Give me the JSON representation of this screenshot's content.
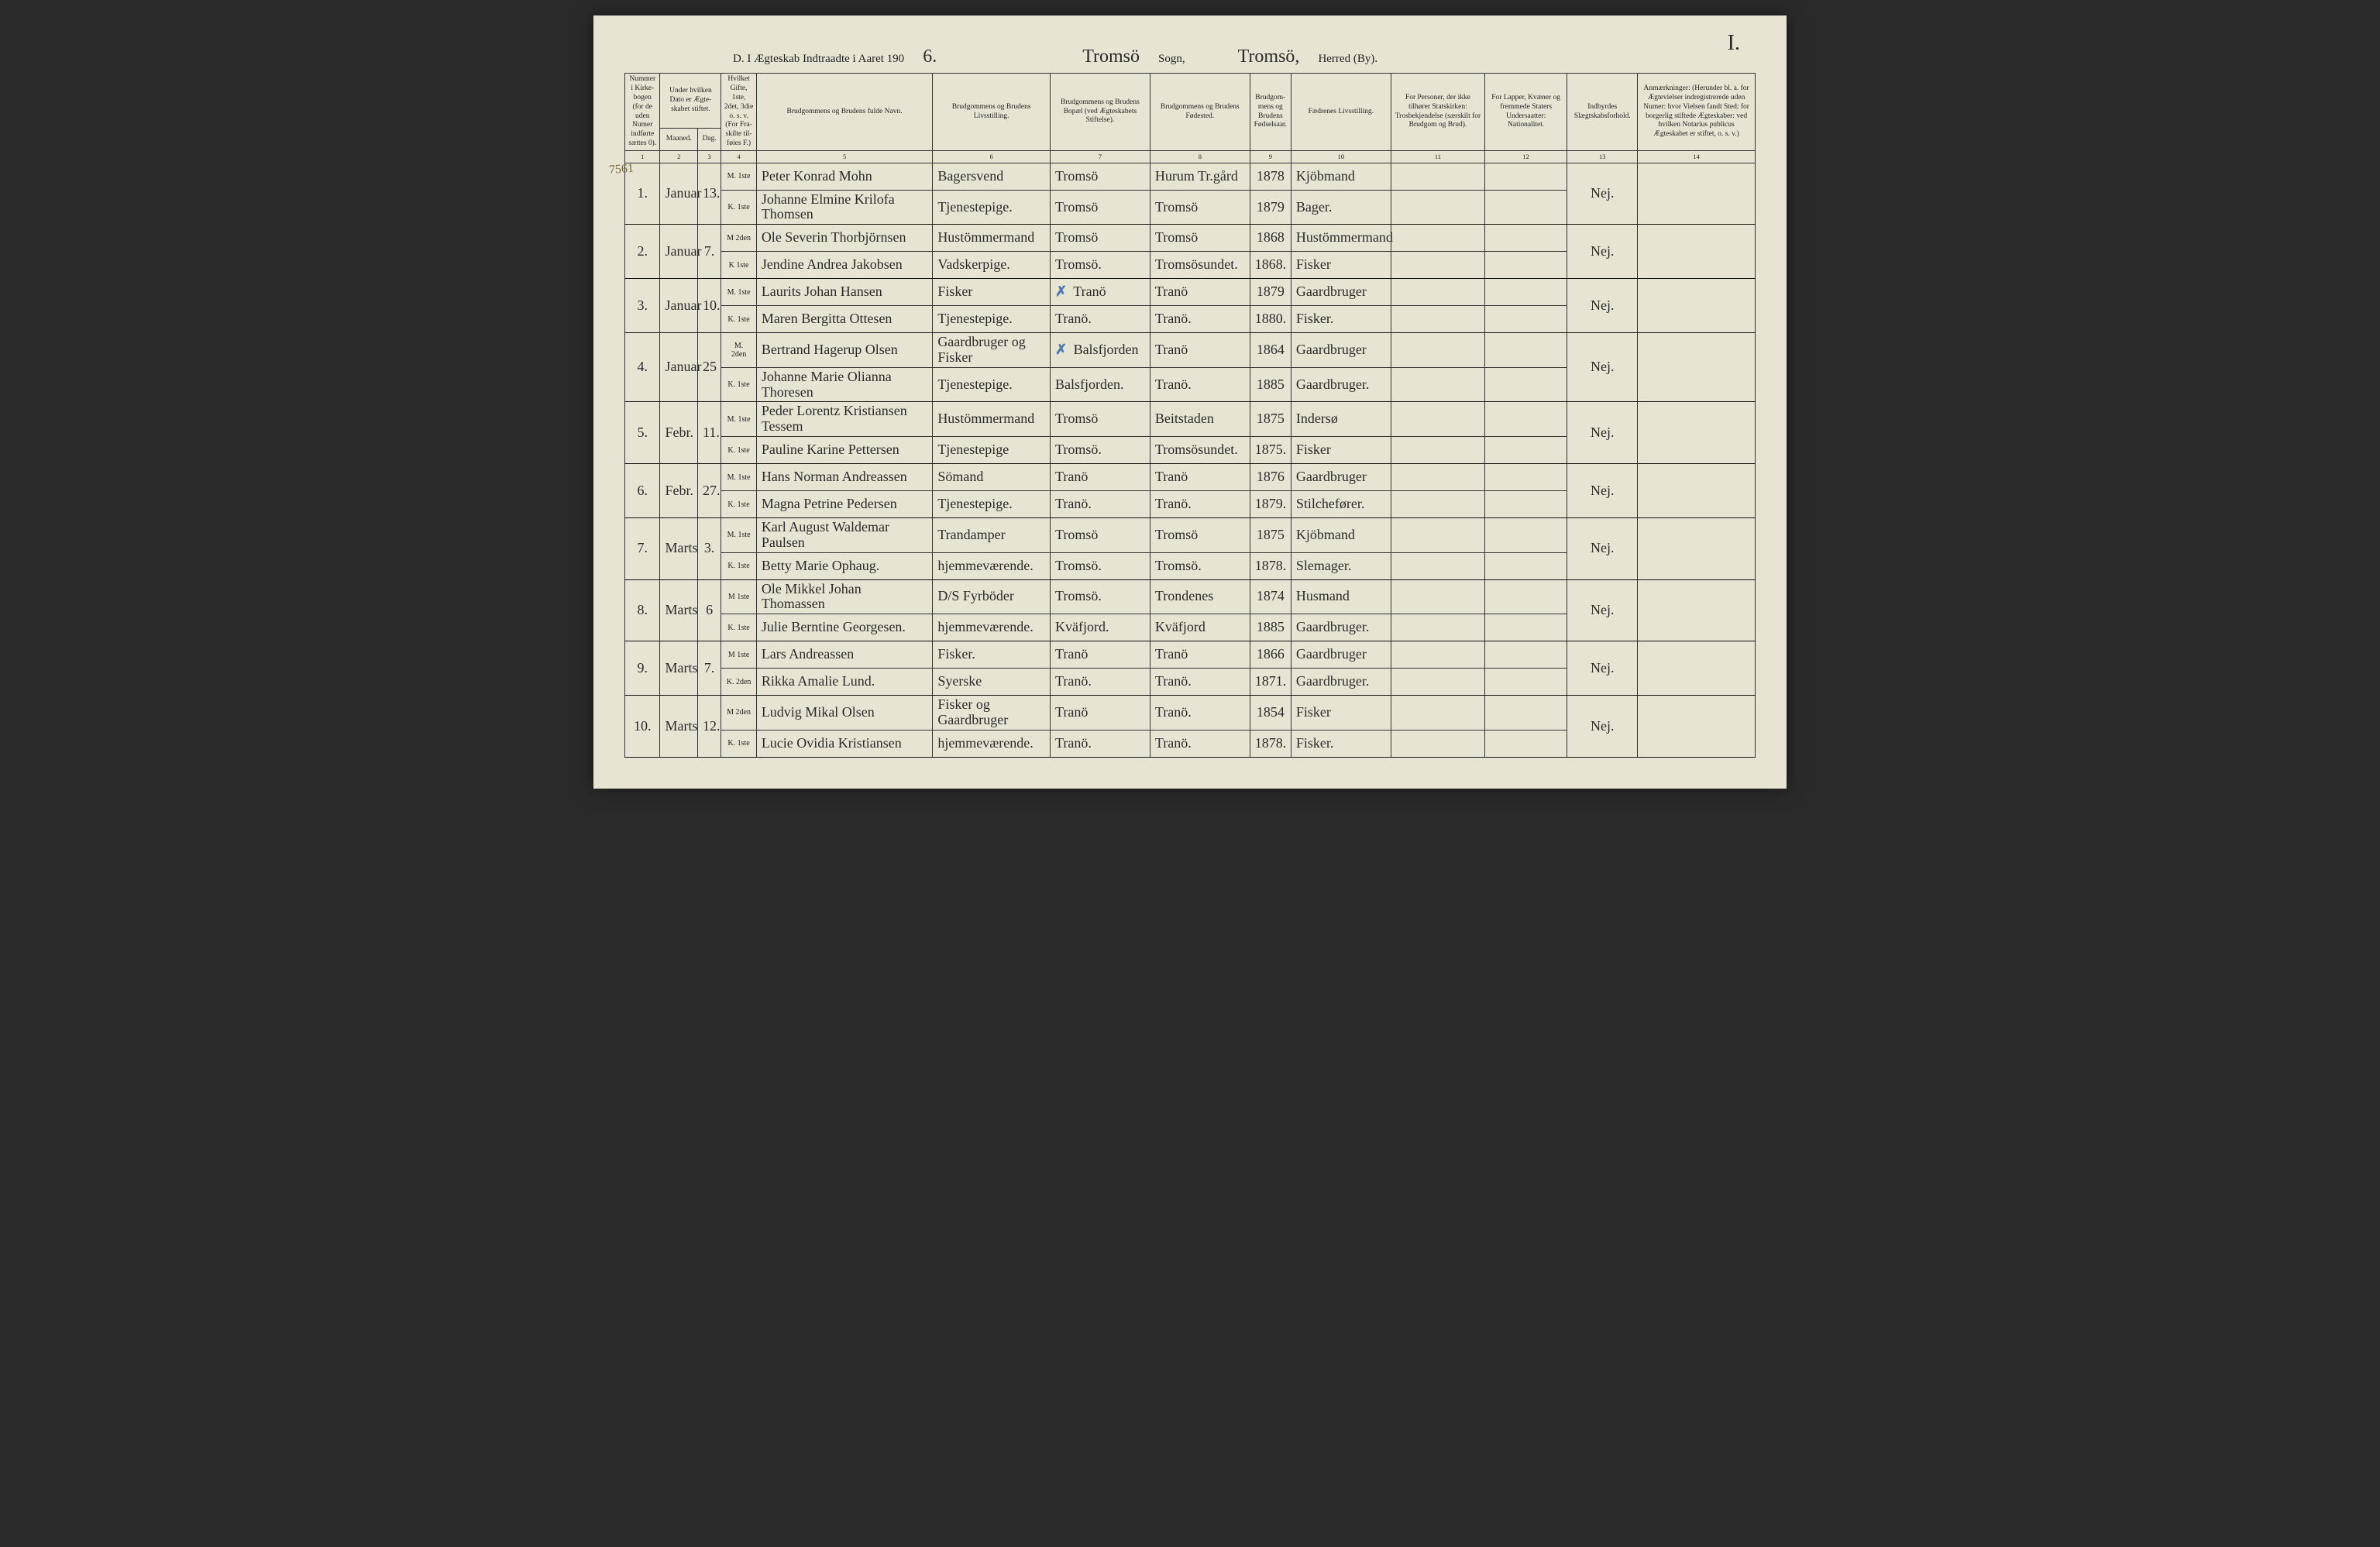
{
  "page_number": "I.",
  "margin_note": "7561",
  "heading": {
    "prefix": "D.  I Ægteskab Indtraadte i Aaret 190",
    "year_suffix": "6.",
    "sogn_label": "Sogn,",
    "herred_label": "Herred (By).",
    "sogn_value": "Tromsö",
    "herred_value": "Tromsö,"
  },
  "columns": [
    "Nummer i Kirke­bogen (for de uden Numer indførte sættes 0).",
    "Under hvilken Dato er Ægte­skabet stiftet.",
    "",
    "Hvilket Gifte, 1ste, 2det, 3die o. s. v. (For Fra­skilte til­føies F.)",
    "Brudgommens og Brudens fulde Navn.",
    "Brudgommens og Brudens Livsstilling.",
    "Brudgommens og Brudens Bopæl (ved Ægteskabets Stiftelse).",
    "Brudgommens og Brudens Fødested.",
    "Brudgom­mens og Brudens Fødselsaar.",
    "Fædrenes Livsstilling.",
    "For Personer, der ikke tilhører Statskirken: Trosbekjendelse (særskilt for Brudgom og Brud).",
    "For Lapper, Kvæner og fremmede Staters Undersaatter: Nationalitet.",
    "Indbyrdes Slægtskabsforhold.",
    "Anmærkninger: (Herunder bl. a. for Ægte­vielser indregistrerede uden Numer: hvor Vielsen fandt Sted; for borgerlig stiftede Ægteskaber: ved hvilken Notarius publicus Ægteskabet er stiftet, o. s. v.)"
  ],
  "subcols": {
    "c2a": "Maaned.",
    "c2b": "Dag."
  },
  "colnums": [
    "1",
    "2",
    "3",
    "4",
    "5",
    "6",
    "7",
    "8",
    "9",
    "10",
    "11",
    "12",
    "13",
    "14"
  ],
  "rows": [
    {
      "n": "1.",
      "month": "Januar",
      "day": "13.",
      "col13": "Nej.",
      "m": {
        "g": "M. 1ste",
        "name": "Peter Konrad Mohn",
        "stand": "Bagersvend",
        "bopel": "Tromsö",
        "fsted": "Hurum Tr.gård",
        "aar": "1878",
        "far": "Kjöbmand"
      },
      "k": {
        "g": "K. 1ste",
        "name": "Johanne Elmine Krilofa Thomsen",
        "stand": "Tjenestepige.",
        "bopel": "Tromsö",
        "fsted": "Tromsö",
        "aar": "1879",
        "far": "Bager."
      }
    },
    {
      "n": "2.",
      "month": "Januar",
      "day": "7.",
      "col13": "Nej.",
      "m": {
        "g": "M 2den",
        "name": "Ole Severin Thorbjörnsen",
        "stand": "Hustömmermand",
        "bopel": "Tromsö",
        "fsted": "Tromsö",
        "aar": "1868",
        "far": "Hustömmermand"
      },
      "k": {
        "g": "K 1ste",
        "name": "Jendine Andrea Jakobsen",
        "stand": "Vadskerpige.",
        "bopel": "Tromsö.",
        "fsted": "Tromsösundet.",
        "aar": "1868.",
        "far": "Fisker"
      }
    },
    {
      "n": "3.",
      "month": "Januar",
      "day": "10.",
      "col13": "Nej.",
      "m": {
        "g": "M. 1ste",
        "name": "Laurits Johan Hansen",
        "stand": "Fisker",
        "bopel": "✗ Tranö",
        "fsted": "Tranö",
        "aar": "1879",
        "far": "Gaardbruger"
      },
      "k": {
        "g": "K. 1ste",
        "name": "Maren Bergitta Ottesen",
        "stand": "Tjenestepige.",
        "bopel": "Tranö.",
        "fsted": "Tranö.",
        "aar": "1880.",
        "far": "Fisker."
      }
    },
    {
      "n": "4.",
      "month": "Januar",
      "day": "25",
      "col13": "Nej.",
      "m": {
        "g": "M. 2den",
        "name": "Bertrand Hagerup Olsen",
        "stand": "Gaardbruger og Fisker",
        "bopel": "✗ Balsfjorden",
        "fsted": "Tranö",
        "aar": "1864",
        "far": "Gaardbruger"
      },
      "k": {
        "g": "K. 1ste",
        "name": "Johanne Marie Olianna Thoresen",
        "stand": "Tjenestepige.",
        "bopel": "Balsfjorden.",
        "fsted": "Tranö.",
        "aar": "1885",
        "far": "Gaardbruger."
      }
    },
    {
      "n": "5.",
      "month": "Febr.",
      "day": "11.",
      "col13": "Nej.",
      "m": {
        "g": "M. 1ste",
        "name": "Peder Lorentz Kristiansen Tessem",
        "stand": "Hustömmermand",
        "bopel": "Tromsö",
        "fsted": "Beitstaden",
        "aar": "1875",
        "far": "Indersø"
      },
      "k": {
        "g": "K. 1ste",
        "name": "Pauline Karine Pettersen",
        "stand": "Tjenestepige",
        "bopel": "Tromsö.",
        "fsted": "Tromsösundet.",
        "aar": "1875.",
        "far": "Fisker"
      }
    },
    {
      "n": "6.",
      "month": "Febr.",
      "day": "27.",
      "col13": "Nej.",
      "m": {
        "g": "M. 1ste",
        "name": "Hans Norman Andreassen",
        "stand": "Sömand",
        "bopel": "Tranö",
        "fsted": "Tranö",
        "aar": "1876",
        "far": "Gaardbruger"
      },
      "k": {
        "g": "K. 1ste",
        "name": "Magna Petrine Pedersen",
        "stand": "Tjenestepige.",
        "bopel": "Tranö.",
        "fsted": "Tranö.",
        "aar": "1879.",
        "far": "Stilchefører."
      }
    },
    {
      "n": "7.",
      "month": "Marts",
      "day": "3.",
      "col13": "Nej.",
      "m": {
        "g": "M. 1ste",
        "name": "Karl August Waldemar Paulsen",
        "stand": "Trandamper",
        "bopel": "Tromsö",
        "fsted": "Tromsö",
        "aar": "1875",
        "far": "Kjöbmand"
      },
      "k": {
        "g": "K. 1ste",
        "name": "Betty Marie Ophaug.",
        "stand": "hjemmeværende.",
        "bopel": "Tromsö.",
        "fsted": "Tromsö.",
        "aar": "1878.",
        "far": "Slemager."
      }
    },
    {
      "n": "8.",
      "month": "Marts",
      "day": "6",
      "col13": "Nej.",
      "m": {
        "g": "M 1ste",
        "name": "Ole Mikkel Johan Thomassen",
        "stand": "D/S Fyrböder",
        "bopel": "Tromsö.",
        "fsted": "Trondenes",
        "aar": "1874",
        "far": "Husmand"
      },
      "k": {
        "g": "K. 1ste",
        "name": "Julie Berntine Georgesen.",
        "stand": "hjemmeværende.",
        "bopel": "Kväfjord.",
        "fsted": "Kväfjord",
        "aar": "1885",
        "far": "Gaardbruger."
      }
    },
    {
      "n": "9.",
      "month": "Marts",
      "day": "7.",
      "col13": "Nej.",
      "m": {
        "g": "M 1ste",
        "name": "Lars Andreassen",
        "stand": "Fisker.",
        "bopel": "Tranö",
        "fsted": "Tranö",
        "aar": "1866",
        "far": "Gaardbruger"
      },
      "k": {
        "g": "K. 2den",
        "name": "Rikka Amalie Lund.",
        "stand": "Syerske",
        "bopel": "Tranö.",
        "fsted": "Tranö.",
        "aar": "1871.",
        "far": "Gaardbruger."
      }
    },
    {
      "n": "10.",
      "month": "Marts",
      "day": "12.",
      "col13": "Nej.",
      "m": {
        "g": "M 2den",
        "name": "Ludvig Mikal Olsen",
        "stand": "Fisker og Gaardbruger",
        "bopel": "Tranö",
        "fsted": "Tranö.",
        "aar": "1854",
        "far": "Fisker"
      },
      "k": {
        "g": "K. 1ste",
        "name": "Lucie Ovidia Kristiansen",
        "stand": "hjemmeværende.",
        "bopel": "Tranö.",
        "fsted": "Tranö.",
        "aar": "1878.",
        "far": "Fisker."
      }
    }
  ],
  "style": {
    "paper_bg": "#e8e4d4",
    "ink": "#2a2a2a",
    "rule": "#333333",
    "blue": "#4a78b0",
    "header_font_pt": 15,
    "body_script_font_pt": 18,
    "th_font_pt": 9.5
  }
}
